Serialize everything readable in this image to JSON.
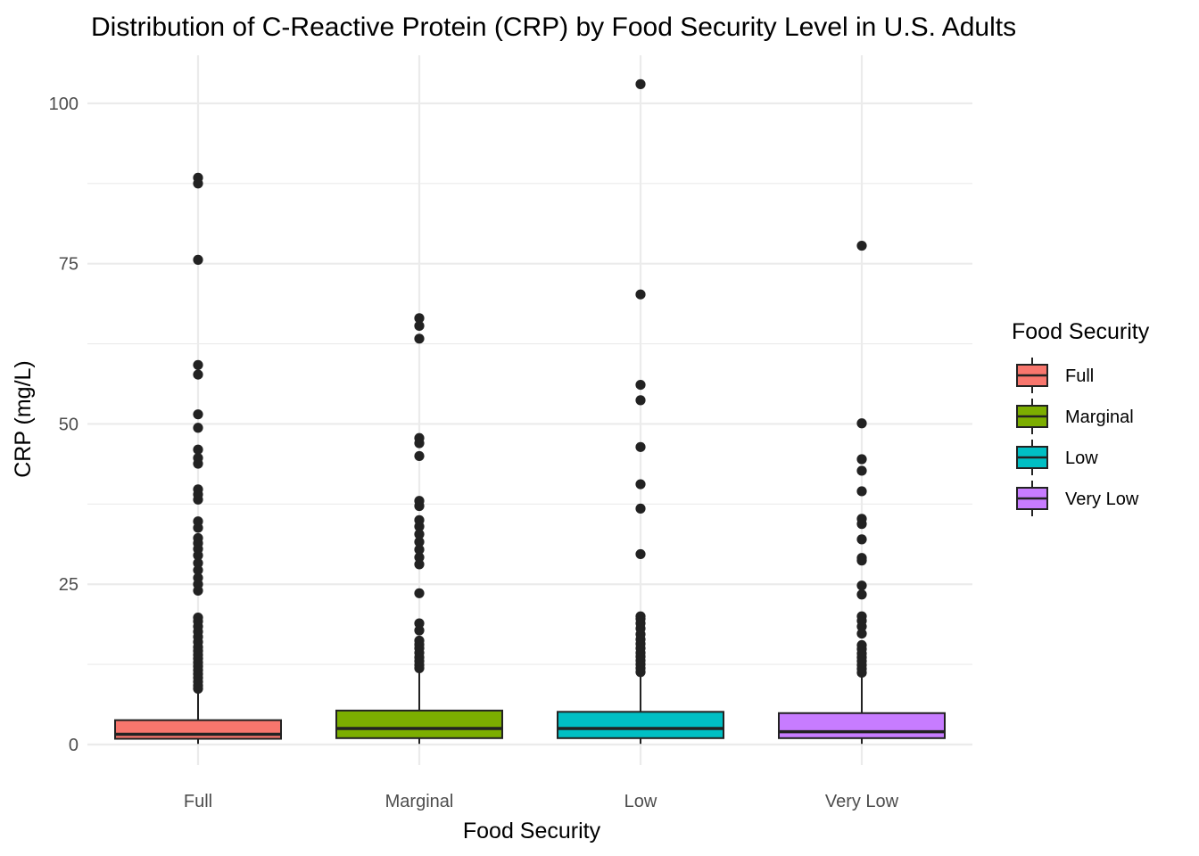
{
  "chart_data": {
    "type": "boxplot",
    "title": "Distribution of C-Reactive Protein (CRP) by Food Security Level in U.S. Adults",
    "xlabel": "Food Security",
    "ylabel": "CRP (mg/L)",
    "ylim": [
      -3.2,
      107.5
    ],
    "yticks": [
      0,
      25,
      50,
      75,
      100
    ],
    "grid": true,
    "legend": {
      "title": "Food Security",
      "placement": "right"
    },
    "categories": [
      "Full",
      "Marginal",
      "Low",
      "Very Low"
    ],
    "series": [
      {
        "name": "Full",
        "color": "#F8766D",
        "q1": 0.9,
        "median": 1.6,
        "q3": 3.8,
        "whisker_low": 0.1,
        "whisker_high": 8.2,
        "outliers": [
          8.7,
          9.2,
          9.8,
          10.4,
          11.0,
          11.6,
          12.2,
          12.8,
          13.4,
          14.0,
          14.6,
          15.2,
          16.0,
          16.8,
          17.6,
          18.4,
          19.2,
          19.8,
          24.0,
          25.0,
          26.0,
          27.2,
          28.3,
          29.5,
          30.5,
          31.4,
          32.2,
          33.8,
          34.8,
          38.2,
          39.0,
          39.8,
          43.8,
          44.7,
          46.0,
          49.4,
          51.5,
          57.7,
          59.2,
          75.6,
          87.5,
          88.4
        ]
      },
      {
        "name": "Marginal",
        "color": "#7CAE00",
        "q1": 1.0,
        "median": 2.5,
        "q3": 5.3,
        "whisker_low": 0.1,
        "whisker_high": 11.4,
        "outliers": [
          11.9,
          12.4,
          13.0,
          13.6,
          14.3,
          15.0,
          15.6,
          16.2,
          17.8,
          18.9,
          23.6,
          28.1,
          29.2,
          30.4,
          31.6,
          32.8,
          34.0,
          35.0,
          37.2,
          38.0,
          45.0,
          47.0,
          47.8,
          63.3,
          65.3,
          66.5
        ]
      },
      {
        "name": "Low",
        "color": "#00BFC4",
        "q1": 1.0,
        "median": 2.5,
        "q3": 5.1,
        "whisker_low": 0.1,
        "whisker_high": 10.9,
        "outliers": [
          11.3,
          11.9,
          12.5,
          13.1,
          13.7,
          14.3,
          15.0,
          15.7,
          16.4,
          17.2,
          18.1,
          18.9,
          19.6,
          20.0,
          29.7,
          36.8,
          40.6,
          46.4,
          53.7,
          56.1,
          70.2,
          103.0
        ]
      },
      {
        "name": "Very Low",
        "color": "#C77CFF",
        "q1": 1.0,
        "median": 2.0,
        "q3": 4.9,
        "whisker_low": 0.1,
        "whisker_high": 10.7,
        "outliers": [
          11.2,
          11.8,
          12.4,
          13.0,
          13.6,
          14.2,
          14.9,
          15.5,
          17.3,
          18.4,
          19.3,
          20.0,
          23.4,
          24.8,
          28.7,
          29.1,
          32.0,
          34.4,
          35.2,
          39.5,
          42.7,
          44.5,
          50.1,
          77.8
        ]
      }
    ]
  }
}
